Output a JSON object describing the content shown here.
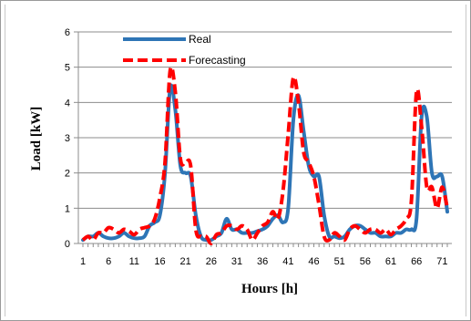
{
  "chart_data": {
    "type": "line",
    "xlabel": "Hours [h]",
    "ylabel": "Load [kW]",
    "ylim": [
      0,
      6
    ],
    "xlim": [
      1,
      72
    ],
    "y_ticks": [
      "0",
      "1",
      "2",
      "3",
      "4",
      "5",
      "6"
    ],
    "x_ticks": [
      "1",
      "6",
      "11",
      "16",
      "21",
      "26",
      "31",
      "36",
      "41",
      "46",
      "51",
      "56",
      "61",
      "66",
      "71"
    ],
    "legend_position": "top-center",
    "x": [
      1,
      2,
      3,
      4,
      5,
      6,
      7,
      8,
      9,
      10,
      11,
      12,
      13,
      14,
      15,
      16,
      17,
      18,
      19,
      20,
      21,
      22,
      23,
      24,
      25,
      26,
      27,
      28,
      29,
      30,
      31,
      32,
      33,
      34,
      35,
      36,
      37,
      38,
      39,
      40,
      41,
      42,
      43,
      44,
      45,
      46,
      47,
      48,
      49,
      50,
      51,
      52,
      53,
      54,
      55,
      56,
      57,
      58,
      59,
      60,
      61,
      62,
      63,
      64,
      65,
      66,
      67,
      68,
      69,
      70,
      71,
      72
    ],
    "series": [
      {
        "name": "Real",
        "color": "#2e75b6",
        "dash": "solid",
        "values": [
          0.1,
          0.2,
          0.2,
          0.3,
          0.2,
          0.15,
          0.15,
          0.2,
          0.3,
          0.2,
          0.15,
          0.15,
          0.2,
          0.5,
          0.6,
          0.8,
          2.0,
          4.4,
          3.8,
          2.2,
          2.0,
          1.9,
          0.8,
          0.2,
          0.1,
          0.1,
          0.2,
          0.3,
          0.7,
          0.4,
          0.4,
          0.3,
          0.3,
          0.3,
          0.35,
          0.4,
          0.5,
          0.7,
          0.8,
          0.6,
          1.0,
          3.5,
          4.2,
          3.2,
          2.2,
          1.9,
          1.9,
          0.8,
          0.2,
          0.2,
          0.15,
          0.2,
          0.4,
          0.5,
          0.5,
          0.4,
          0.3,
          0.3,
          0.2,
          0.2,
          0.2,
          0.3,
          0.3,
          0.4,
          0.4,
          0.7,
          3.6,
          3.6,
          2.0,
          1.9,
          1.9,
          0.9
        ]
      },
      {
        "name": "Forecasting",
        "color": "#ff0000",
        "dash": "dashed",
        "values": [
          0.1,
          0.2,
          0.1,
          0.3,
          0.3,
          0.45,
          0.4,
          0.3,
          0.4,
          0.35,
          0.25,
          0.4,
          0.45,
          0.5,
          0.7,
          1.3,
          2.3,
          4.9,
          4.3,
          2.4,
          2.3,
          2.2,
          0.4,
          0.2,
          0.2,
          0.0,
          0.25,
          0.3,
          0.5,
          0.5,
          0.4,
          0.5,
          0.4,
          0.1,
          0.3,
          0.5,
          0.6,
          0.9,
          0.7,
          1.5,
          3.1,
          4.7,
          4.0,
          2.6,
          2.3,
          1.9,
          1.1,
          0.2,
          0.1,
          0.3,
          0.2,
          0.1,
          0.4,
          0.5,
          0.4,
          0.3,
          0.4,
          0.4,
          0.3,
          0.4,
          0.25,
          0.4,
          0.5,
          0.7,
          1.2,
          4.3,
          3.3,
          1.6,
          1.6,
          1.0,
          1.6,
          1.0
        ]
      }
    ]
  }
}
